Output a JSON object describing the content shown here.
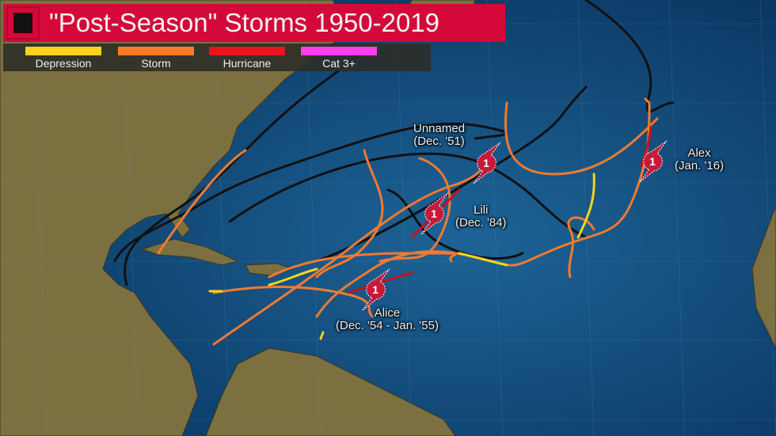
{
  "title": "\"Post-Season\" Storms 1950-2019",
  "legend": [
    {
      "label": "Depression",
      "color": "#ffd21a"
    },
    {
      "label": "Storm",
      "color": "#ff7a26"
    },
    {
      "label": "Hurricane",
      "color": "#e8141e"
    },
    {
      "label": "Cat 3+",
      "color": "#ff3cf0"
    }
  ],
  "track_colors": {
    "extratropical": "#111111",
    "depression": "#f3d51c",
    "storm": "#f07a30",
    "hurricane": "#c8101e"
  },
  "hurricane_icon": {
    "category": "1",
    "color": "#c8193a"
  },
  "storms": [
    {
      "name": "Unnamed",
      "dates": "(Dec. '51)"
    },
    {
      "name": "Lili",
      "dates": "(Dec. '84)"
    },
    {
      "name": "Alice",
      "dates": "(Dec. '54 - Jan. '55)"
    },
    {
      "name": "Alex",
      "dates": "(Jan. '16)"
    }
  ]
}
